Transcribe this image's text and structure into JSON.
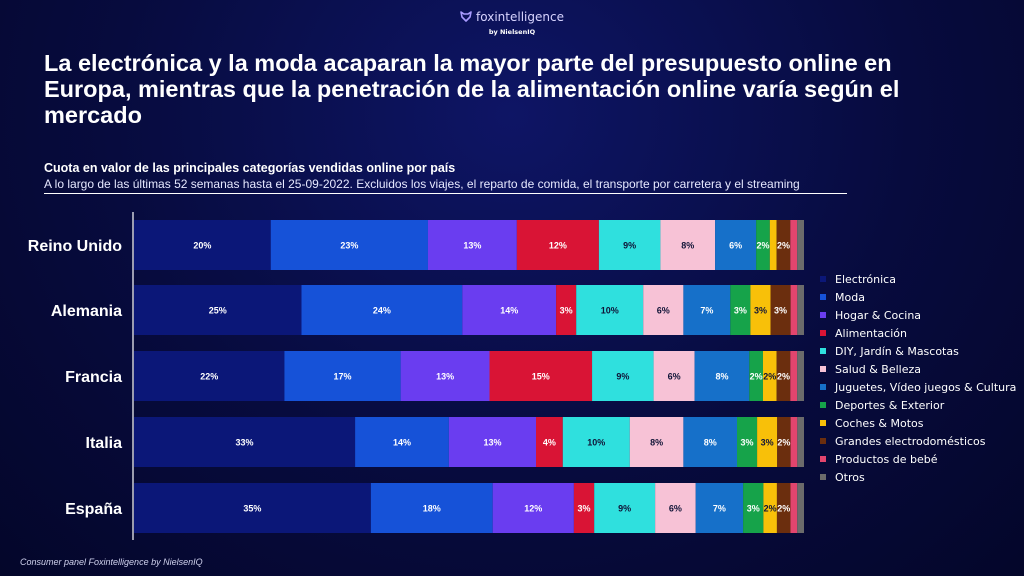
{
  "brand": {
    "name": "foxintelligence",
    "sub": "by NielsenIQ"
  },
  "headline": "La electrónica y la moda acaparan la mayor parte del presupuesto online en Europa, mientras que la penetración de la alimentación online varía según el mercado",
  "subtitle": "Cuota en valor de las principales categorías vendidas online por país",
  "note": "A lo largo de las últimas 52 semanas hasta el 25-09-2022. Excluidos los viajes, el reparto de comida, el transporte por carretera y el streaming",
  "source": "Consumer panel Foxintelligence by NielsenIQ",
  "chart_data": {
    "type": "bar",
    "orientation": "horizontal",
    "stacked": true,
    "unit": "%",
    "categories": [
      "Reino Unido",
      "Alemania",
      "Francia",
      "Italia",
      "España"
    ],
    "series": [
      {
        "name": "Electrónica",
        "color": "#0b1778",
        "values": [
          20,
          25,
          22,
          33,
          35
        ],
        "labels": [
          "20%",
          "25%",
          "22%",
          "33%",
          "35%"
        ]
      },
      {
        "name": "Moda",
        "color": "#1652d8",
        "values": [
          23,
          24,
          17,
          14,
          18
        ],
        "labels": [
          "23%",
          "24%",
          "17%",
          "14%",
          "18%"
        ]
      },
      {
        "name": "Hogar & Cocina",
        "color": "#6a3df0",
        "values": [
          13,
          14,
          13,
          13,
          12
        ],
        "labels": [
          "13%",
          "14%",
          "13%",
          "13%",
          "12%"
        ]
      },
      {
        "name": "Alimentación",
        "color": "#d91435",
        "values": [
          12,
          3,
          15,
          4,
          3
        ],
        "labels": [
          "12%",
          "3%",
          "15%",
          "4%",
          "3%"
        ]
      },
      {
        "name": "DIY, Jardín & Mascotas",
        "color": "#2fe0de",
        "values": [
          9,
          10,
          9,
          10,
          9
        ],
        "labels": [
          "9%",
          "10%",
          "9%",
          "10%",
          "9%"
        ]
      },
      {
        "name": "Salud & Belleza",
        "color": "#f7c2d6",
        "values": [
          8,
          6,
          6,
          8,
          6
        ],
        "labels": [
          "8%",
          "6%",
          "6%",
          "8%",
          "6%"
        ]
      },
      {
        "name": "Juguetes, Vídeo juegos & Cultura",
        "color": "#1670c9",
        "values": [
          6,
          7,
          8,
          8,
          7
        ],
        "labels": [
          "6%",
          "7%",
          "8%",
          "8%",
          "7%"
        ]
      },
      {
        "name": "Deportes & Exterior",
        "color": "#16a34a",
        "values": [
          2,
          3,
          2,
          3,
          3
        ],
        "labels": [
          "2%",
          "3%",
          "2%",
          "3%",
          "3%"
        ]
      },
      {
        "name": "Coches & Motos",
        "color": "#f8c009",
        "values": [
          1,
          3,
          2,
          3,
          2
        ],
        "labels": [
          "",
          "3%",
          "2%",
          "3%",
          "2%"
        ]
      },
      {
        "name": "Grandes electrodomésticos",
        "color": "#6b2e0e",
        "values": [
          2,
          3,
          2,
          2,
          2
        ],
        "labels": [
          "2%",
          "3%",
          "2%",
          "2%",
          "2%"
        ]
      },
      {
        "name": "Productos de bebé",
        "color": "#e2456e",
        "values": [
          1,
          1,
          1,
          1,
          1
        ],
        "labels": [
          "",
          "",
          "",
          "",
          ""
        ]
      },
      {
        "name": "Otros",
        "color": "#6b6b6b",
        "values": [
          1,
          1,
          1,
          1,
          1
        ],
        "labels": [
          "",
          "",
          "",
          "",
          ""
        ]
      }
    ]
  }
}
